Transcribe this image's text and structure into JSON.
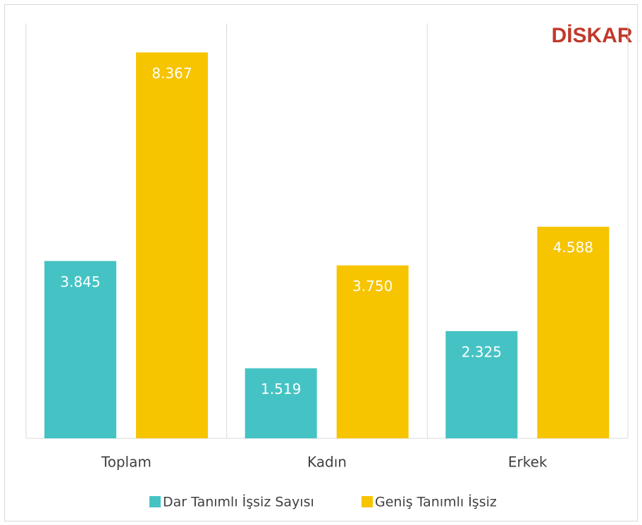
{
  "chart_data": {
    "type": "bar",
    "categories": [
      "Toplam",
      "Kadın",
      "Erkek"
    ],
    "series": [
      {
        "name": "Dar Tanımlı İşsiz Sayısı",
        "color": "#45c3c4",
        "values": [
          3845,
          1519,
          2325
        ],
        "value_labels": [
          "3.845",
          "1.519",
          "2.325"
        ]
      },
      {
        "name": "Geniş Tanımlı İşsiz",
        "color": "#f7c400",
        "values": [
          8367,
          3750,
          4588
        ],
        "value_labels": [
          "8.367",
          "3.750",
          "4.588"
        ]
      }
    ],
    "ylim": [
      0,
      9000
    ],
    "logo": "DİSKAR"
  }
}
